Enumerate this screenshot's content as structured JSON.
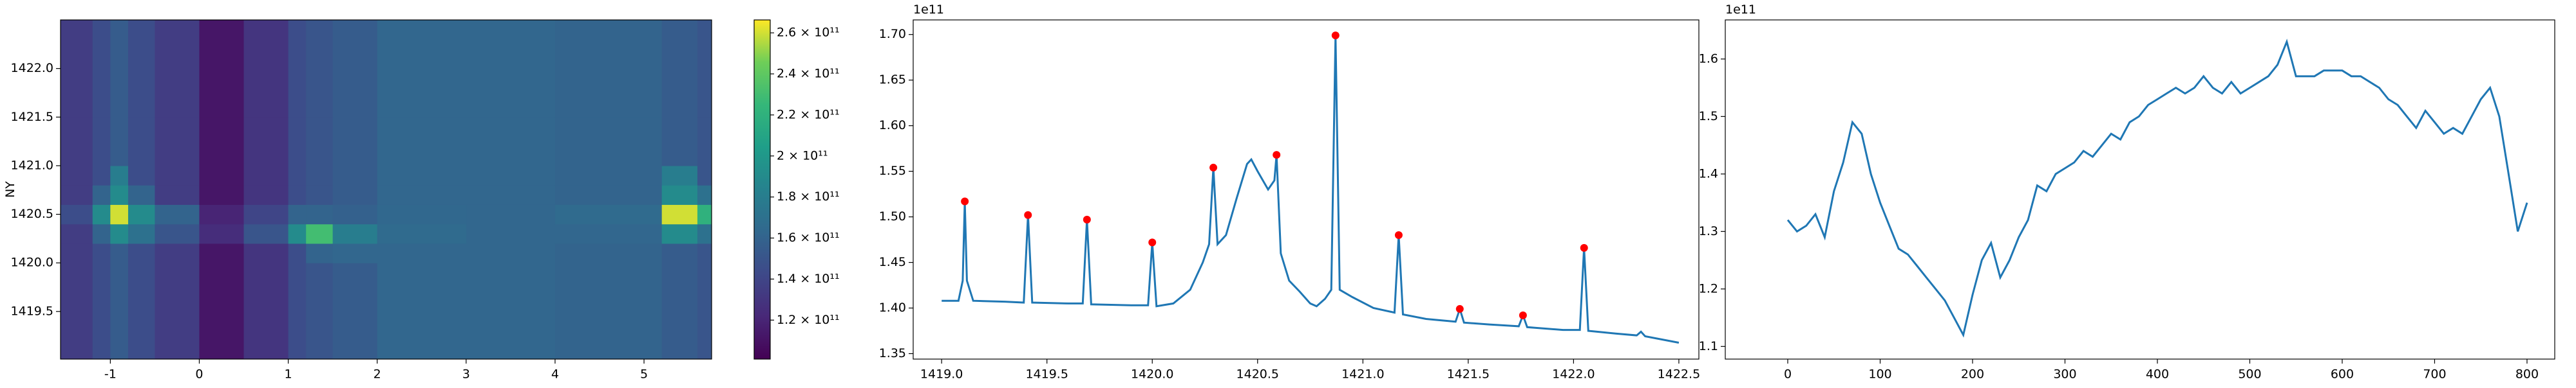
{
  "chart_data": [
    {
      "type": "heatmap",
      "ylabel": "NY",
      "x_edges": [
        -1.56,
        -1.2,
        -1.0,
        -0.8,
        -0.5,
        0,
        0.5,
        1.0,
        1.2,
        1.5,
        2.0,
        3.0,
        4.0,
        5.2,
        5.6,
        5.76
      ],
      "y_edges": [
        1419.01,
        1419.5,
        1420.0,
        1420.2,
        1420.4,
        1420.6,
        1420.8,
        1421.0,
        1421.5,
        1422.5
      ],
      "values": [
        [
          135000000000.0,
          145000000000.0,
          155000000000.0,
          145000000000.0,
          135000000000.0,
          112000000000.0,
          130000000000.0,
          145000000000.0,
          150000000000.0,
          155000000000.0,
          162000000000.0,
          162000000000.0,
          160000000000.0,
          155000000000.0,
          150000000000.0
        ],
        [
          135000000000.0,
          145000000000.0,
          155000000000.0,
          145000000000.0,
          135000000000.0,
          112000000000.0,
          130000000000.0,
          145000000000.0,
          150000000000.0,
          155000000000.0,
          162000000000.0,
          162000000000.0,
          160000000000.0,
          155000000000.0,
          150000000000.0
        ],
        [
          135000000000.0,
          145000000000.0,
          155000000000.0,
          145000000000.0,
          135000000000.0,
          112000000000.0,
          130000000000.0,
          145000000000.0,
          160000000000.0,
          162000000000.0,
          162000000000.0,
          162000000000.0,
          160000000000.0,
          155000000000.0,
          150000000000.0
        ],
        [
          135000000000.0,
          160000000000.0,
          190000000000.0,
          170000000000.0,
          150000000000.0,
          125000000000.0,
          150000000000.0,
          190000000000.0,
          230000000000.0,
          180000000000.0,
          165000000000.0,
          162000000000.0,
          162000000000.0,
          190000000000.0,
          170000000000.0
        ],
        [
          145000000000.0,
          190000000000.0,
          260000000000.0,
          190000000000.0,
          160000000000.0,
          120000000000.0,
          140000000000.0,
          160000000000.0,
          160000000000.0,
          158000000000.0,
          163000000000.0,
          162000000000.0,
          165000000000.0,
          260000000000.0,
          220000000000.0
        ],
        [
          135000000000.0,
          160000000000.0,
          190000000000.0,
          160000000000.0,
          135000000000.0,
          112000000000.0,
          130000000000.0,
          145000000000.0,
          150000000000.0,
          155000000000.0,
          162000000000.0,
          162000000000.0,
          160000000000.0,
          190000000000.0,
          170000000000.0
        ],
        [
          135000000000.0,
          145000000000.0,
          180000000000.0,
          145000000000.0,
          135000000000.0,
          112000000000.0,
          130000000000.0,
          145000000000.0,
          150000000000.0,
          155000000000.0,
          162000000000.0,
          162000000000.0,
          160000000000.0,
          180000000000.0,
          150000000000.0
        ],
        [
          135000000000.0,
          145000000000.0,
          155000000000.0,
          145000000000.0,
          135000000000.0,
          112000000000.0,
          130000000000.0,
          145000000000.0,
          150000000000.0,
          155000000000.0,
          162000000000.0,
          162000000000.0,
          160000000000.0,
          155000000000.0,
          150000000000.0
        ],
        [
          135000000000.0,
          145000000000.0,
          155000000000.0,
          145000000000.0,
          135000000000.0,
          112000000000.0,
          130000000000.0,
          145000000000.0,
          150000000000.0,
          155000000000.0,
          162000000000.0,
          162000000000.0,
          160000000000.0,
          155000000000.0,
          150000000000.0
        ]
      ],
      "xlim": [
        -1.56,
        5.76
      ],
      "ylim": [
        1419.01,
        1422.5
      ],
      "xticks": [
        -1,
        0,
        1,
        2,
        3,
        4,
        5
      ],
      "yticks": [
        1419.5,
        {
          "value": 1420,
          "label": "1420.0"
        },
        1420.5,
        {
          "value": 1421,
          "label": "1421.0"
        },
        1421.5,
        {
          "value": 1422,
          "label": "1422.0"
        }
      ],
      "colormap": "viridis",
      "clim": [
        101000000000.0,
        266300000000.0
      ],
      "cticks": [
        {
          "value": 120000000000.0,
          "label": "1.2 × 10¹¹"
        },
        {
          "value": 140000000000.0,
          "label": "1.4 × 10¹¹"
        },
        {
          "value": 160000000000.0,
          "label": "1.6 × 10¹¹"
        },
        {
          "value": 180000000000.0,
          "label": "1.8 × 10¹¹"
        },
        {
          "value": 200000000000.0,
          "label": "2 × 10¹¹"
        },
        {
          "value": 220000000000.0,
          "label": "2.2 × 10¹¹"
        },
        {
          "value": 240000000000.0,
          "label": "2.4 × 10¹¹"
        },
        {
          "value": 260000000000.0,
          "label": "2.6 × 10¹¹"
        }
      ]
    },
    {
      "type": "line",
      "y_offset_label": "1e11",
      "series": [
        {
          "kind": "line",
          "color": "#1f77b4",
          "x": [
            1419.0,
            1419.08,
            1419.1,
            1419.11,
            1419.12,
            1419.15,
            1419.3,
            1419.39,
            1419.41,
            1419.43,
            1419.6,
            1419.67,
            1419.69,
            1419.71,
            1419.9,
            1419.98,
            1420.0,
            1420.02,
            1420.1,
            1420.18,
            1420.24,
            1420.27,
            1420.29,
            1420.31,
            1420.35,
            1420.4,
            1420.45,
            1420.47,
            1420.5,
            1420.55,
            1420.58,
            1420.59,
            1420.61,
            1420.65,
            1420.7,
            1420.75,
            1420.78,
            1420.82,
            1420.85,
            1420.87,
            1420.89,
            1420.95,
            1421.05,
            1421.15,
            1421.17,
            1421.19,
            1421.3,
            1421.44,
            1421.46,
            1421.48,
            1421.6,
            1421.74,
            1421.76,
            1421.78,
            1421.95,
            1422.03,
            1422.05,
            1422.07,
            1422.2,
            1422.3,
            1422.32,
            1422.34,
            1422.5
          ],
          "values": [
            1.408,
            1.408,
            1.43,
            1.517,
            1.43,
            1.408,
            1.407,
            1.406,
            1.502,
            1.406,
            1.405,
            1.405,
            1.497,
            1.404,
            1.403,
            1.403,
            1.472,
            1.402,
            1.405,
            1.42,
            1.45,
            1.47,
            1.554,
            1.47,
            1.48,
            1.52,
            1.558,
            1.563,
            1.55,
            1.53,
            1.54,
            1.568,
            1.46,
            1.43,
            1.418,
            1.405,
            1.402,
            1.41,
            1.42,
            1.699,
            1.42,
            1.412,
            1.4,
            1.395,
            1.48,
            1.393,
            1.388,
            1.385,
            1.399,
            1.384,
            1.382,
            1.38,
            1.392,
            1.379,
            1.376,
            1.376,
            1.466,
            1.375,
            1.372,
            1.37,
            1.374,
            1.369,
            1.362
          ]
        },
        {
          "kind": "scatter",
          "color": "#ff0000",
          "x": [
            1419.11,
            1419.41,
            1419.69,
            1420.0,
            1420.29,
            1420.59,
            1420.87,
            1421.17,
            1421.46,
            1421.76,
            1422.05
          ],
          "values": [
            1.517,
            1.502,
            1.497,
            1.472,
            1.554,
            1.568,
            1.699,
            1.48,
            1.399,
            1.392,
            1.466
          ]
        }
      ],
      "xlim": [
        1418.865,
        1422.595
      ],
      "ylim": [
        1.344,
        1.716
      ],
      "xticks": [
        {
          "value": 1419,
          "label": "1419.0"
        },
        1419.5,
        {
          "value": 1420,
          "label": "1420.0"
        },
        1420.5,
        {
          "value": 1421,
          "label": "1421.0"
        },
        1421.5,
        {
          "value": 1422,
          "label": "1422.0"
        },
        1422.5
      ],
      "yticks": [
        1.35,
        {
          "value": 1.4,
          "label": "1.40"
        },
        1.45,
        {
          "value": 1.5,
          "label": "1.50"
        },
        1.55,
        {
          "value": 1.6,
          "label": "1.60"
        },
        1.65,
        {
          "value": 1.7,
          "label": "1.70"
        }
      ]
    },
    {
      "type": "line",
      "y_offset_label": "1e11",
      "series": [
        {
          "kind": "line",
          "color": "#1f77b4",
          "x": [
            0,
            10,
            20,
            30,
            40,
            50,
            60,
            70,
            80,
            90,
            100,
            110,
            120,
            130,
            140,
            150,
            160,
            170,
            180,
            190,
            200,
            210,
            220,
            230,
            240,
            250,
            260,
            270,
            280,
            290,
            300,
            310,
            320,
            330,
            340,
            350,
            360,
            370,
            380,
            390,
            400,
            410,
            420,
            430,
            440,
            450,
            460,
            470,
            480,
            490,
            500,
            510,
            520,
            530,
            540,
            550,
            560,
            570,
            580,
            590,
            600,
            610,
            620,
            630,
            640,
            650,
            660,
            670,
            680,
            690,
            700,
            710,
            720,
            730,
            740,
            750,
            760,
            770,
            780,
            790,
            800
          ],
          "values": [
            1.32,
            1.3,
            1.31,
            1.33,
            1.29,
            1.37,
            1.42,
            1.49,
            1.47,
            1.4,
            1.35,
            1.31,
            1.27,
            1.26,
            1.24,
            1.22,
            1.2,
            1.18,
            1.15,
            1.12,
            1.19,
            1.25,
            1.28,
            1.22,
            1.25,
            1.29,
            1.32,
            1.38,
            1.37,
            1.4,
            1.41,
            1.42,
            1.44,
            1.43,
            1.45,
            1.47,
            1.46,
            1.49,
            1.5,
            1.52,
            1.53,
            1.54,
            1.55,
            1.54,
            1.55,
            1.57,
            1.55,
            1.54,
            1.56,
            1.54,
            1.55,
            1.56,
            1.57,
            1.59,
            1.63,
            1.57,
            1.57,
            1.57,
            1.58,
            1.58,
            1.58,
            1.57,
            1.57,
            1.56,
            1.55,
            1.53,
            1.52,
            1.5,
            1.48,
            1.51,
            1.49,
            1.47,
            1.48,
            1.47,
            1.5,
            1.53,
            1.55,
            1.5,
            1.4,
            1.3,
            1.35
          ]
        }
      ],
      "xlim": [
        -67.6,
        830
      ],
      "ylim": [
        1.078,
        1.668
      ],
      "xticks": [
        0,
        100,
        200,
        300,
        400,
        500,
        600,
        700,
        800
      ],
      "yticks": [
        1.1,
        1.2,
        1.3,
        1.4,
        1.5,
        1.6
      ]
    }
  ]
}
